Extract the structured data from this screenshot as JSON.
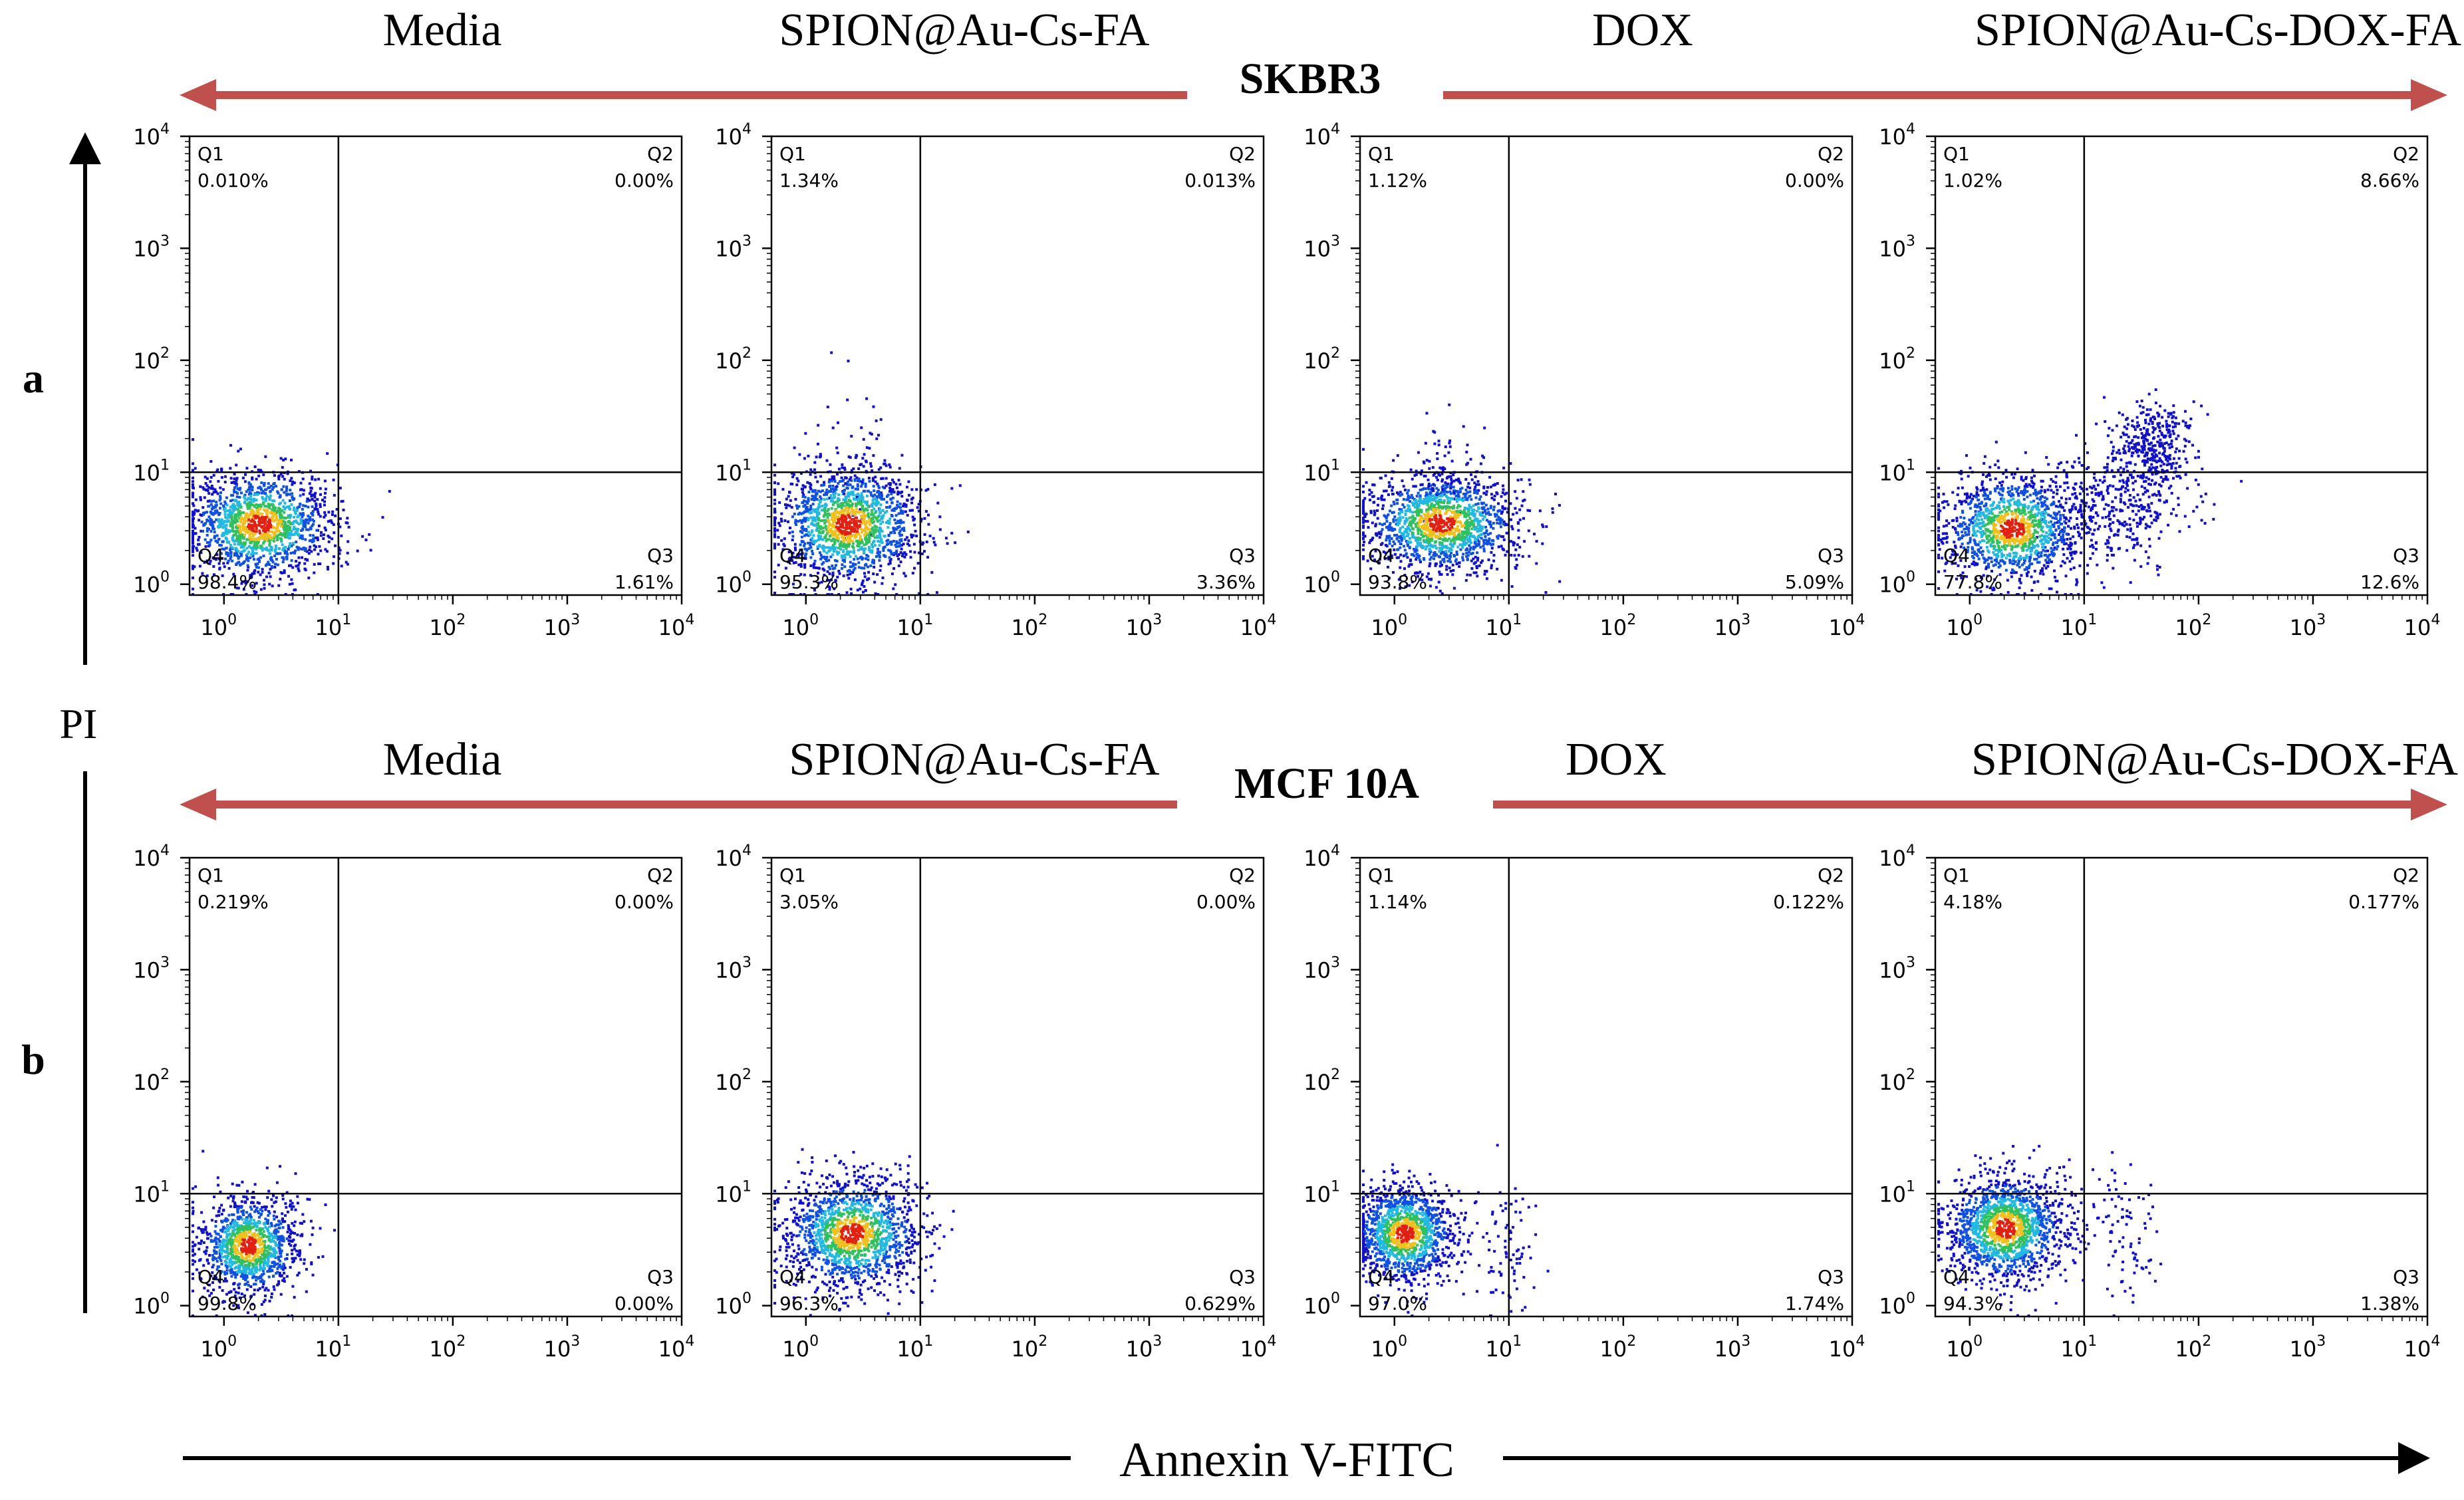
{
  "figure": {
    "axis_y_label": "PI",
    "axis_x_label": "Annexin V-FITC",
    "tick_base": "10",
    "tick_exponents": [
      "0",
      "1",
      "2",
      "3",
      "4"
    ],
    "colors": {
      "arrow_red": "#c0504d",
      "axis_black": "#000000",
      "density_low": "#1010c8",
      "density_mid": "#22b8e0",
      "density_high": "#e02010"
    }
  },
  "chart_data": [
    {
      "row_label": "a",
      "cell_line": "SKBR3",
      "group_labels": [
        "Media",
        "SPION@Au-Cs-FA",
        "DOX",
        "SPION@Au-Cs-DOX-FA"
      ],
      "plots": [
        {
          "type": "scatter",
          "title": "Media",
          "xlabel": "Annexin V-FITC",
          "ylabel": "PI",
          "xscale": "log",
          "yscale": "log",
          "xlim": [
            0.5,
            10000
          ],
          "ylim": [
            0.8,
            10000
          ],
          "quadrants": [
            {
              "name": "Q1",
              "value": "0.010%"
            },
            {
              "name": "Q2",
              "value": "0.00%"
            },
            {
              "name": "Q3",
              "value": "1.61%"
            },
            {
              "name": "Q4",
              "value": "98.4%"
            }
          ],
          "populations": [
            {
              "x": 2.0,
              "y": 3.5,
              "sx": 0.32,
              "sy": 0.24,
              "n": 1500
            }
          ]
        },
        {
          "type": "scatter",
          "title": "SPION@Au-Cs-FA",
          "xlabel": "Annexin V-FITC",
          "ylabel": "PI",
          "xscale": "log",
          "yscale": "log",
          "xlim": [
            0.5,
            10000
          ],
          "ylim": [
            0.8,
            10000
          ],
          "quadrants": [
            {
              "name": "Q1",
              "value": "1.34%"
            },
            {
              "name": "Q2",
              "value": "0.013%"
            },
            {
              "name": "Q3",
              "value": "3.36%"
            },
            {
              "name": "Q4",
              "value": "95.3%"
            }
          ],
          "populations": [
            {
              "x": 2.3,
              "y": 3.5,
              "sx": 0.32,
              "sy": 0.26,
              "n": 1500
            },
            {
              "x": 2.5,
              "y": 12.0,
              "sx": 0.18,
              "sy": 0.3,
              "n": 60
            }
          ]
        },
        {
          "type": "scatter",
          "title": "DOX",
          "xlabel": "Annexin V-FITC",
          "ylabel": "PI",
          "xscale": "log",
          "yscale": "log",
          "xlim": [
            0.5,
            10000
          ],
          "ylim": [
            0.8,
            10000
          ],
          "quadrants": [
            {
              "name": "Q1",
              "value": "1.12%"
            },
            {
              "name": "Q2",
              "value": "0.00%"
            },
            {
              "name": "Q3",
              "value": "5.09%"
            },
            {
              "name": "Q4",
              "value": "93.8%"
            }
          ],
          "populations": [
            {
              "x": 2.5,
              "y": 3.6,
              "sx": 0.34,
              "sy": 0.22,
              "n": 1500
            },
            {
              "x": 2.5,
              "y": 12.0,
              "sx": 0.15,
              "sy": 0.25,
              "n": 50
            }
          ]
        },
        {
          "type": "scatter",
          "title": "SPION@Au-Cs-DOX-FA",
          "xlabel": "Annexin V-FITC",
          "ylabel": "PI",
          "xscale": "log",
          "yscale": "log",
          "xlim": [
            0.5,
            10000
          ],
          "ylim": [
            0.8,
            10000
          ],
          "quadrants": [
            {
              "name": "Q1",
              "value": "1.02%"
            },
            {
              "name": "Q2",
              "value": "8.66%"
            },
            {
              "name": "Q3",
              "value": "12.6%"
            },
            {
              "name": "Q4",
              "value": "77.8%"
            }
          ],
          "populations": [
            {
              "x": 2.3,
              "y": 3.2,
              "sx": 0.3,
              "sy": 0.24,
              "n": 1300
            },
            {
              "x": 40.0,
              "y": 18.0,
              "sx": 0.18,
              "sy": 0.2,
              "n": 350
            },
            {
              "x": 18.0,
              "y": 5.0,
              "sx": 0.35,
              "sy": 0.25,
              "n": 400
            }
          ]
        }
      ]
    },
    {
      "row_label": "b",
      "cell_line": "MCF 10A",
      "group_labels": [
        "Media",
        "SPION@Au-Cs-FA",
        "DOX",
        "SPION@Au-Cs-DOX-FA"
      ],
      "plots": [
        {
          "type": "scatter",
          "title": "Media",
          "xlabel": "Annexin V-FITC",
          "ylabel": "PI",
          "xscale": "log",
          "yscale": "log",
          "xlim": [
            0.5,
            10000
          ],
          "ylim": [
            0.8,
            10000
          ],
          "quadrants": [
            {
              "name": "Q1",
              "value": "0.219%"
            },
            {
              "name": "Q2",
              "value": "0.00%"
            },
            {
              "name": "Q3",
              "value": "0.00%"
            },
            {
              "name": "Q4",
              "value": "99.8%"
            }
          ],
          "populations": [
            {
              "x": 1.6,
              "y": 3.5,
              "sx": 0.22,
              "sy": 0.22,
              "n": 1200
            }
          ]
        },
        {
          "type": "scatter",
          "title": "SPION@Au-Cs-FA",
          "xlabel": "Annexin V-FITC",
          "ylabel": "PI",
          "xscale": "log",
          "yscale": "log",
          "xlim": [
            0.5,
            10000
          ],
          "ylim": [
            0.8,
            10000
          ],
          "quadrants": [
            {
              "name": "Q1",
              "value": "3.05%"
            },
            {
              "name": "Q2",
              "value": "0.00%"
            },
            {
              "name": "Q3",
              "value": "0.629%"
            },
            {
              "name": "Q4",
              "value": "96.3%"
            }
          ],
          "populations": [
            {
              "x": 2.5,
              "y": 4.5,
              "sx": 0.3,
              "sy": 0.25,
              "n": 1500
            }
          ]
        },
        {
          "type": "scatter",
          "title": "DOX",
          "xlabel": "Annexin V-FITC",
          "ylabel": "PI",
          "xscale": "log",
          "yscale": "log",
          "xlim": [
            0.5,
            10000
          ],
          "ylim": [
            0.8,
            10000
          ],
          "quadrants": [
            {
              "name": "Q1",
              "value": "1.14%"
            },
            {
              "name": "Q2",
              "value": "0.122%"
            },
            {
              "name": "Q3",
              "value": "1.74%"
            },
            {
              "name": "Q4",
              "value": "97.0%"
            }
          ],
          "populations": [
            {
              "x": 1.2,
              "y": 4.5,
              "sx": 0.22,
              "sy": 0.22,
              "n": 1300
            },
            {
              "x": 10.0,
              "y": 3.0,
              "sx": 0.12,
              "sy": 0.3,
              "n": 80
            }
          ]
        },
        {
          "type": "scatter",
          "title": "SPION@Au-Cs-DOX-FA",
          "xlabel": "Annexin V-FITC",
          "ylabel": "PI",
          "xscale": "log",
          "yscale": "log",
          "xlim": [
            0.5,
            10000
          ],
          "ylim": [
            0.8,
            10000
          ],
          "quadrants": [
            {
              "name": "Q1",
              "value": "4.18%"
            },
            {
              "name": "Q2",
              "value": "0.177%"
            },
            {
              "name": "Q3",
              "value": "1.38%"
            },
            {
              "name": "Q4",
              "value": "94.3%"
            }
          ],
          "populations": [
            {
              "x": 2.0,
              "y": 5.0,
              "sx": 0.26,
              "sy": 0.24,
              "n": 1500
            },
            {
              "x": 20.0,
              "y": 4.0,
              "sx": 0.15,
              "sy": 0.3,
              "n": 90
            }
          ]
        }
      ]
    }
  ]
}
